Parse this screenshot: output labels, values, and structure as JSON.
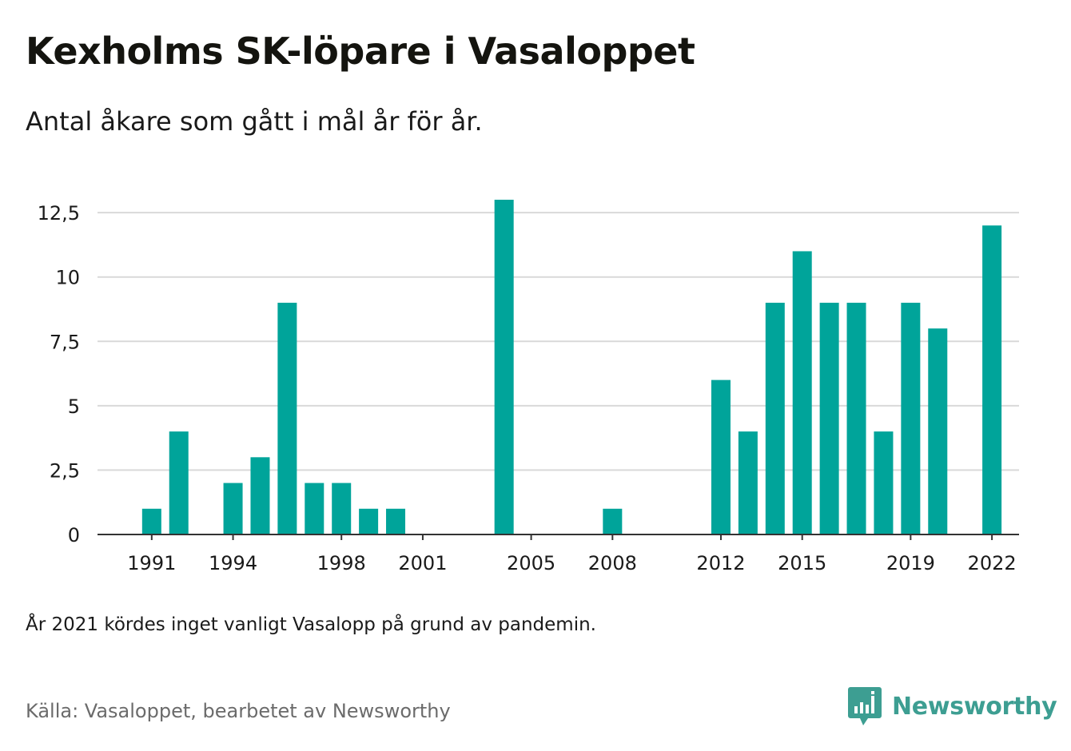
{
  "title": "Kexholms SK-löpare i Vasaloppet",
  "subtitle": "Antal åkare som gått i mål år för år.",
  "note": "År 2021 kördes inget vanligt Vasalopp på grund av pandemin.",
  "source": "Källa: Vasaloppet, bearbetet av Newsworthy",
  "logo": {
    "text": "Newsworthy",
    "icon": "newsworthy-logo-icon",
    "color": "#3d9e92"
  },
  "colors": {
    "bar": "#00a49a",
    "grid": "#d9d9d9",
    "axis": "#333333",
    "text": "#1a1a1a"
  },
  "chart_data": {
    "type": "bar",
    "title": "Kexholms SK-löpare i Vasaloppet",
    "subtitle": "Antal åkare som gått i mål år för år.",
    "xlabel": "",
    "ylabel": "",
    "x_range": [
      1989,
      2023
    ],
    "ylim": [
      0,
      13
    ],
    "y_ticks": [
      {
        "value": 0,
        "label": "0"
      },
      {
        "value": 2.5,
        "label": "2,5"
      },
      {
        "value": 5,
        "label": "5"
      },
      {
        "value": 7.5,
        "label": "7,5"
      },
      {
        "value": 10,
        "label": "10"
      },
      {
        "value": 12.5,
        "label": "12,5"
      }
    ],
    "x_ticks": [
      {
        "value": 1991,
        "label": "1991"
      },
      {
        "value": 1994,
        "label": "1994"
      },
      {
        "value": 1998,
        "label": "1998"
      },
      {
        "value": 2001,
        "label": "2001"
      },
      {
        "value": 2005,
        "label": "2005"
      },
      {
        "value": 2008,
        "label": "2008"
      },
      {
        "value": 2012,
        "label": "2012"
      },
      {
        "value": 2015,
        "label": "2015"
      },
      {
        "value": 2019,
        "label": "2019"
      },
      {
        "value": 2022,
        "label": "2022"
      }
    ],
    "grid": true,
    "legend": "none",
    "points": [
      {
        "x": 1991,
        "y": 1
      },
      {
        "x": 1992,
        "y": 4
      },
      {
        "x": 1994,
        "y": 2
      },
      {
        "x": 1995,
        "y": 3
      },
      {
        "x": 1996,
        "y": 9
      },
      {
        "x": 1997,
        "y": 2
      },
      {
        "x": 1998,
        "y": 2
      },
      {
        "x": 1999,
        "y": 1
      },
      {
        "x": 2000,
        "y": 1
      },
      {
        "x": 2004,
        "y": 13
      },
      {
        "x": 2008,
        "y": 1
      },
      {
        "x": 2012,
        "y": 6
      },
      {
        "x": 2013,
        "y": 4
      },
      {
        "x": 2014,
        "y": 9
      },
      {
        "x": 2015,
        "y": 11
      },
      {
        "x": 2016,
        "y": 9
      },
      {
        "x": 2017,
        "y": 9
      },
      {
        "x": 2018,
        "y": 4
      },
      {
        "x": 2019,
        "y": 9
      },
      {
        "x": 2020,
        "y": 8
      },
      {
        "x": 2022,
        "y": 12
      }
    ]
  }
}
